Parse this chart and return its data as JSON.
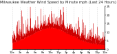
{
  "title": "Milwaukee Weather Wind Speed by Minute mph (Last 24 Hours)",
  "bg_color": "#ffffff",
  "fill_color": "#ff0000",
  "line_color": "#cc0000",
  "ylim": [
    0,
    25
  ],
  "xlim": [
    0,
    1440
  ],
  "yticks": [
    0,
    5,
    10,
    15,
    20,
    25
  ],
  "num_points": 1440,
  "title_fontsize": 3.8,
  "tick_fontsize": 3.0,
  "grid_color": "#bbbbbb",
  "wind_seed": 1234
}
